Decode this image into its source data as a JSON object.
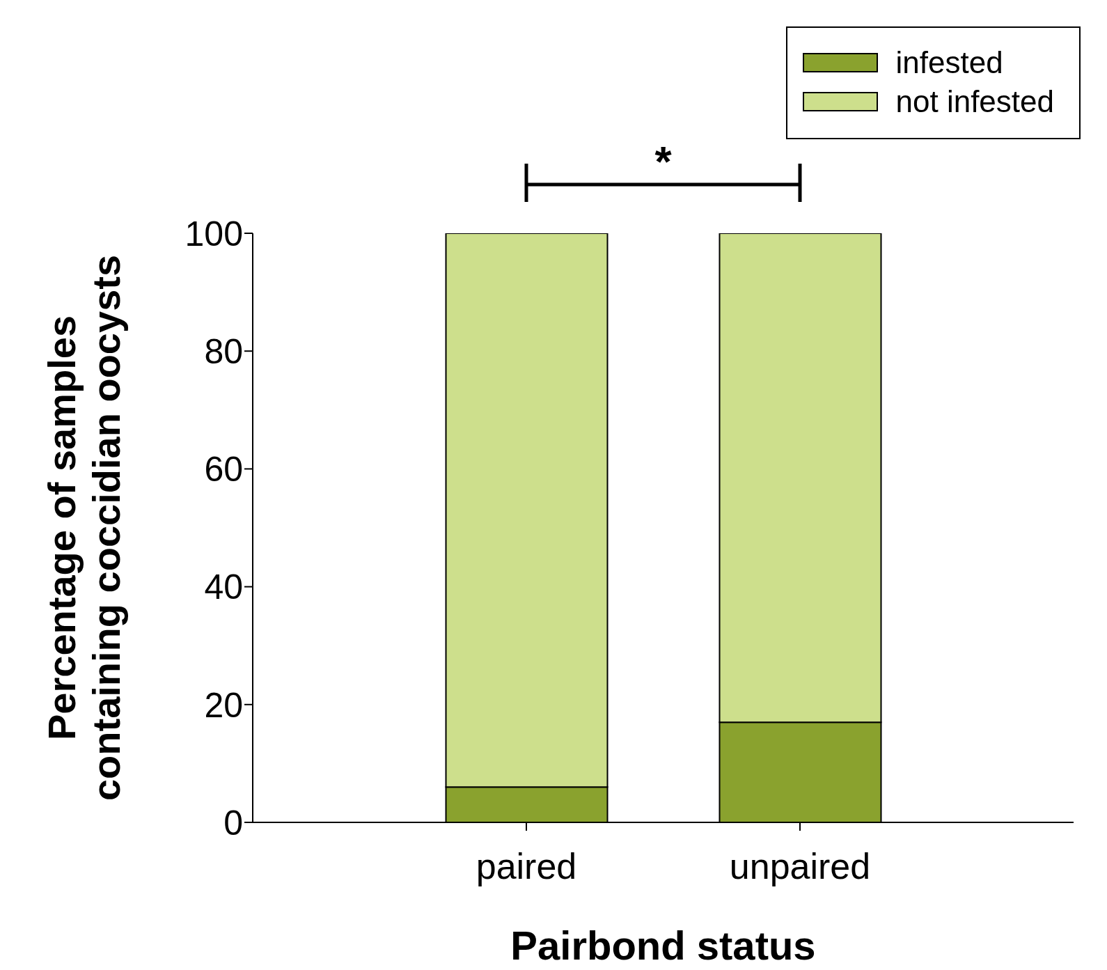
{
  "chart_data": {
    "type": "bar",
    "xlabel": "Pairbond status",
    "ylabel": "Percentage of samples containing coccidian oocysts",
    "categories": [
      "paired",
      "unpaired"
    ],
    "stacked": true,
    "series": [
      {
        "name": "infested",
        "color": "#8aa22e",
        "values": [
          6,
          17
        ]
      },
      {
        "name": "not infested",
        "color": "#cddf8c",
        "values": [
          94,
          83
        ]
      }
    ],
    "ylim": [
      0,
      100
    ],
    "yticks": [
      0,
      20,
      40,
      60,
      80,
      100
    ],
    "legend": "top right",
    "grid": false,
    "annotations": [
      "*"
    ]
  }
}
